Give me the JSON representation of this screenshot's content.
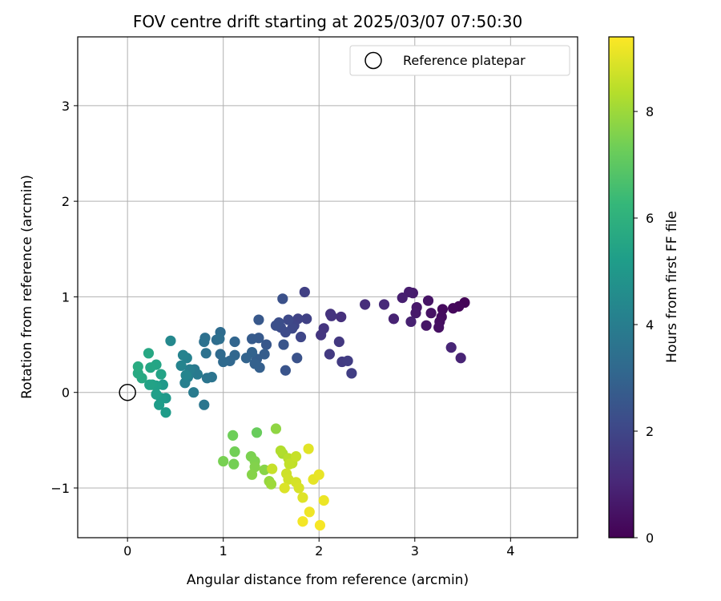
{
  "chart_data": {
    "type": "scatter",
    "title": "FOV centre drift starting at 2025/03/07 07:50:30",
    "xlabel": "Angular distance from reference (arcmin)",
    "ylabel": "Rotation from reference (arcmin)",
    "xlim": [
      -0.52,
      4.7
    ],
    "ylim": [
      -1.52,
      3.72
    ],
    "xticks": [
      0,
      1,
      2,
      3,
      4
    ],
    "yticks": [
      -1,
      0,
      1,
      2,
      3
    ],
    "xtick_labels": [
      "0",
      "1",
      "2",
      "3",
      "4"
    ],
    "ytick_labels": [
      "−1",
      "0",
      "1",
      "2",
      "3"
    ],
    "grid": true,
    "legend": {
      "location": "top-right",
      "entries": [
        "Reference platepar"
      ]
    },
    "reference_point": {
      "x": 0,
      "y": 0,
      "label": "Reference platepar"
    },
    "colorbar": {
      "label": "Hours from first FF file",
      "cmap": "viridis",
      "min": 0,
      "max": 9.4,
      "ticks": [
        0,
        2,
        4,
        6,
        8
      ],
      "tick_labels": [
        "0",
        "2",
        "4",
        "6",
        "8"
      ]
    },
    "colormap_stops": [
      "#440154",
      "#482878",
      "#3e4989",
      "#31688e",
      "#26828e",
      "#1f9e89",
      "#35b779",
      "#6ece58",
      "#b5de2b",
      "#fde725"
    ],
    "points": [
      {
        "x": 3.52,
        "y": 0.94,
        "t": 0.1
      },
      {
        "x": 3.46,
        "y": 0.9,
        "t": 0.15
      },
      {
        "x": 3.4,
        "y": 0.88,
        "t": 0.2
      },
      {
        "x": 3.29,
        "y": 0.87,
        "t": 0.25
      },
      {
        "x": 3.28,
        "y": 0.79,
        "t": 0.3
      },
      {
        "x": 3.26,
        "y": 0.74,
        "t": 0.35
      },
      {
        "x": 3.25,
        "y": 0.68,
        "t": 0.4
      },
      {
        "x": 3.17,
        "y": 0.83,
        "t": 0.45
      },
      {
        "x": 3.14,
        "y": 0.96,
        "t": 0.5
      },
      {
        "x": 3.12,
        "y": 0.7,
        "t": 0.55
      },
      {
        "x": 3.02,
        "y": 0.89,
        "t": 0.6
      },
      {
        "x": 3.01,
        "y": 0.83,
        "t": 0.65
      },
      {
        "x": 2.98,
        "y": 1.04,
        "t": 0.7
      },
      {
        "x": 2.94,
        "y": 1.05,
        "t": 0.75
      },
      {
        "x": 2.87,
        "y": 0.99,
        "t": 0.8
      },
      {
        "x": 2.96,
        "y": 0.74,
        "t": 0.85
      },
      {
        "x": 2.78,
        "y": 0.77,
        "t": 0.9
      },
      {
        "x": 3.48,
        "y": 0.36,
        "t": 0.95
      },
      {
        "x": 3.38,
        "y": 0.47,
        "t": 1.0
      },
      {
        "x": 2.68,
        "y": 0.92,
        "t": 1.1
      },
      {
        "x": 2.48,
        "y": 0.92,
        "t": 1.2
      },
      {
        "x": 2.23,
        "y": 0.79,
        "t": 1.3
      },
      {
        "x": 2.12,
        "y": 0.82,
        "t": 1.35
      },
      {
        "x": 2.13,
        "y": 0.8,
        "t": 1.4
      },
      {
        "x": 2.05,
        "y": 0.67,
        "t": 1.45
      },
      {
        "x": 2.02,
        "y": 0.6,
        "t": 1.5
      },
      {
        "x": 2.21,
        "y": 0.53,
        "t": 1.55
      },
      {
        "x": 2.11,
        "y": 0.4,
        "t": 1.6
      },
      {
        "x": 2.24,
        "y": 0.32,
        "t": 1.65
      },
      {
        "x": 2.3,
        "y": 0.33,
        "t": 1.7
      },
      {
        "x": 2.34,
        "y": 0.2,
        "t": 1.75
      },
      {
        "x": 1.85,
        "y": 1.05,
        "t": 1.8
      },
      {
        "x": 1.87,
        "y": 0.77,
        "t": 1.85
      },
      {
        "x": 1.78,
        "y": 0.77,
        "t": 1.9
      },
      {
        "x": 1.74,
        "y": 0.7,
        "t": 1.95
      },
      {
        "x": 1.81,
        "y": 0.58,
        "t": 2.0
      },
      {
        "x": 1.72,
        "y": 0.67,
        "t": 2.05
      },
      {
        "x": 1.68,
        "y": 0.76,
        "t": 2.1
      },
      {
        "x": 1.65,
        "y": 0.63,
        "t": 2.15
      },
      {
        "x": 1.6,
        "y": 0.68,
        "t": 2.2
      },
      {
        "x": 1.58,
        "y": 0.73,
        "t": 2.25
      },
      {
        "x": 1.55,
        "y": 0.7,
        "t": 2.3
      },
      {
        "x": 1.62,
        "y": 0.98,
        "t": 2.35
      },
      {
        "x": 1.77,
        "y": 0.36,
        "t": 2.4
      },
      {
        "x": 1.65,
        "y": 0.23,
        "t": 2.45
      },
      {
        "x": 1.63,
        "y": 0.5,
        "t": 2.5
      },
      {
        "x": 1.45,
        "y": 0.5,
        "t": 2.55
      },
      {
        "x": 1.37,
        "y": 0.76,
        "t": 2.6
      },
      {
        "x": 1.37,
        "y": 0.57,
        "t": 2.65
      },
      {
        "x": 1.3,
        "y": 0.56,
        "t": 2.7
      },
      {
        "x": 1.43,
        "y": 0.4,
        "t": 2.75
      },
      {
        "x": 1.35,
        "y": 0.35,
        "t": 2.8
      },
      {
        "x": 1.38,
        "y": 0.26,
        "t": 2.85
      },
      {
        "x": 1.33,
        "y": 0.3,
        "t": 2.9
      },
      {
        "x": 1.3,
        "y": 0.42,
        "t": 2.95
      },
      {
        "x": 1.24,
        "y": 0.36,
        "t": 3.0
      },
      {
        "x": 1.12,
        "y": 0.53,
        "t": 3.05
      },
      {
        "x": 1.12,
        "y": 0.39,
        "t": 3.1
      },
      {
        "x": 1.07,
        "y": 0.33,
        "t": 3.15
      },
      {
        "x": 1.0,
        "y": 0.32,
        "t": 3.2
      },
      {
        "x": 0.97,
        "y": 0.4,
        "t": 3.25
      },
      {
        "x": 0.97,
        "y": 0.63,
        "t": 3.3
      },
      {
        "x": 0.93,
        "y": 0.55,
        "t": 3.35
      },
      {
        "x": 0.96,
        "y": 0.56,
        "t": 3.4
      },
      {
        "x": 0.81,
        "y": 0.57,
        "t": 3.45
      },
      {
        "x": 0.8,
        "y": 0.53,
        "t": 3.5
      },
      {
        "x": 0.82,
        "y": 0.41,
        "t": 3.55
      },
      {
        "x": 0.88,
        "y": 0.16,
        "t": 3.6
      },
      {
        "x": 0.83,
        "y": 0.15,
        "t": 3.65
      },
      {
        "x": 0.8,
        "y": -0.13,
        "t": 3.7
      },
      {
        "x": 0.7,
        "y": 0.24,
        "t": 3.8
      },
      {
        "x": 0.73,
        "y": 0.19,
        "t": 3.85
      },
      {
        "x": 0.69,
        "y": 0.0,
        "t": 3.9
      },
      {
        "x": 0.65,
        "y": 0.24,
        "t": 4.0
      },
      {
        "x": 0.63,
        "y": 0.16,
        "t": 4.05
      },
      {
        "x": 0.6,
        "y": 0.1,
        "t": 4.1
      },
      {
        "x": 0.62,
        "y": 0.36,
        "t": 4.15
      },
      {
        "x": 0.58,
        "y": 0.39,
        "t": 4.2
      },
      {
        "x": 0.56,
        "y": 0.28,
        "t": 4.25
      },
      {
        "x": 0.61,
        "y": 0.18,
        "t": 4.3
      },
      {
        "x": 0.45,
        "y": 0.54,
        "t": 4.4
      },
      {
        "x": 0.4,
        "y": -0.06,
        "t": 5.0
      },
      {
        "x": 0.37,
        "y": 0.08,
        "t": 5.05
      },
      {
        "x": 0.35,
        "y": -0.06,
        "t": 5.1
      },
      {
        "x": 0.4,
        "y": -0.21,
        "t": 5.15
      },
      {
        "x": 0.33,
        "y": -0.13,
        "t": 5.2
      },
      {
        "x": 0.3,
        "y": -0.02,
        "t": 5.25
      },
      {
        "x": 0.3,
        "y": 0.07,
        "t": 5.3
      },
      {
        "x": 0.26,
        "y": 0.08,
        "t": 5.35
      },
      {
        "x": 0.23,
        "y": 0.08,
        "t": 5.4
      },
      {
        "x": 0.35,
        "y": 0.19,
        "t": 5.45
      },
      {
        "x": 0.3,
        "y": 0.29,
        "t": 5.5
      },
      {
        "x": 0.24,
        "y": 0.26,
        "t": 5.55
      },
      {
        "x": 0.22,
        "y": 0.41,
        "t": 5.6
      },
      {
        "x": 0.15,
        "y": 0.15,
        "t": 5.65
      },
      {
        "x": 0.11,
        "y": 0.2,
        "t": 5.7
      },
      {
        "x": 0.11,
        "y": 0.27,
        "t": 5.75
      },
      {
        "x": 1.35,
        "y": -0.42,
        "t": 7.2
      },
      {
        "x": 1.1,
        "y": -0.45,
        "t": 7.3
      },
      {
        "x": 1.12,
        "y": -0.62,
        "t": 7.35
      },
      {
        "x": 1.11,
        "y": -0.75,
        "t": 7.4
      },
      {
        "x": 1.0,
        "y": -0.72,
        "t": 7.45
      },
      {
        "x": 1.29,
        "y": -0.67,
        "t": 7.5
      },
      {
        "x": 1.33,
        "y": -0.72,
        "t": 7.55
      },
      {
        "x": 1.33,
        "y": -0.78,
        "t": 7.6
      },
      {
        "x": 1.3,
        "y": -0.86,
        "t": 7.65
      },
      {
        "x": 1.43,
        "y": -0.81,
        "t": 7.7
      },
      {
        "x": 1.55,
        "y": -0.38,
        "t": 7.8
      },
      {
        "x": 1.48,
        "y": -0.93,
        "t": 7.9
      },
      {
        "x": 1.5,
        "y": -0.96,
        "t": 8.0
      },
      {
        "x": 1.62,
        "y": -0.64,
        "t": 8.2
      },
      {
        "x": 1.6,
        "y": -0.61,
        "t": 8.3
      },
      {
        "x": 1.68,
        "y": -0.69,
        "t": 8.4
      },
      {
        "x": 1.72,
        "y": -0.74,
        "t": 8.5
      },
      {
        "x": 1.69,
        "y": -0.75,
        "t": 8.55
      },
      {
        "x": 1.76,
        "y": -0.67,
        "t": 8.6
      },
      {
        "x": 1.51,
        "y": -0.8,
        "t": 8.6
      },
      {
        "x": 1.66,
        "y": -0.85,
        "t": 8.7
      },
      {
        "x": 1.68,
        "y": -0.91,
        "t": 8.75
      },
      {
        "x": 1.76,
        "y": -0.94,
        "t": 8.8
      },
      {
        "x": 1.79,
        "y": -1.0,
        "t": 8.85
      },
      {
        "x": 1.64,
        "y": -1.0,
        "t": 8.9
      },
      {
        "x": 1.83,
        "y": -1.1,
        "t": 8.95
      },
      {
        "x": 1.89,
        "y": -0.59,
        "t": 9.0
      },
      {
        "x": 1.94,
        "y": -0.91,
        "t": 9.05
      },
      {
        "x": 2.0,
        "y": -0.86,
        "t": 9.1
      },
      {
        "x": 2.05,
        "y": -1.13,
        "t": 9.15
      },
      {
        "x": 1.9,
        "y": -1.25,
        "t": 9.2
      },
      {
        "x": 1.83,
        "y": -1.35,
        "t": 9.25
      },
      {
        "x": 2.01,
        "y": -1.39,
        "t": 9.3
      }
    ]
  }
}
